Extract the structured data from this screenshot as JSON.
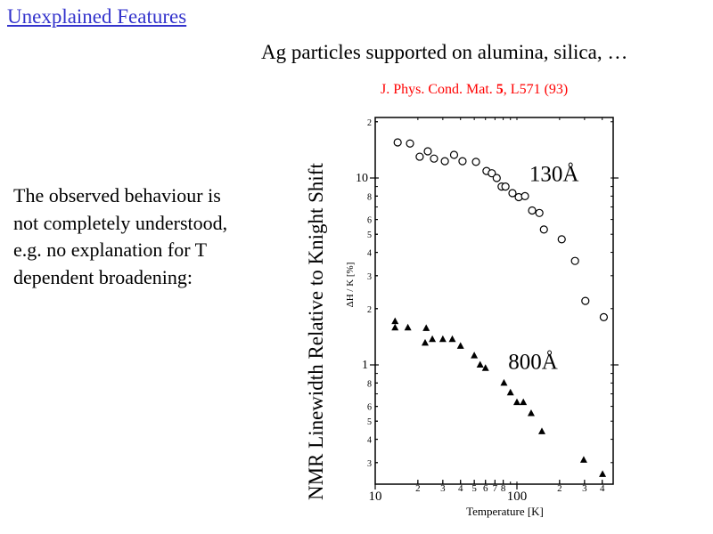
{
  "slide": {
    "title": "Unexplained Features",
    "subtitle": "Ag particles supported on alumina, silica, …",
    "reference": {
      "prefix": "J. Phys. Cond. Mat. ",
      "volume": "5",
      "suffix": ", L571 (93)"
    },
    "body_lines": [
      "The observed behaviour is",
      "not completely understood,",
      "e.g. no explanation for T",
      "dependent broadening:"
    ],
    "outer_ylabel": "NMR Linewidth Relative to Knight Shift"
  },
  "colors": {
    "title_link": "#3333cc",
    "reference": "#ff0000",
    "text": "#000000"
  },
  "chart_data": {
    "type": "scatter",
    "title": "",
    "xlabel": "Temperature  [K]",
    "ylabel": "ΔH / K  [%]",
    "xscale": "log",
    "yscale": "log",
    "xlim": [
      9.5,
      470
    ],
    "ylim": [
      0.24,
      21
    ],
    "grid": false,
    "x_ticks": [
      {
        "value": 10,
        "label": "10",
        "major": true
      },
      {
        "value": 20,
        "label": "2"
      },
      {
        "value": 30,
        "label": "3"
      },
      {
        "value": 40,
        "label": "4"
      },
      {
        "value": 50,
        "label": "5"
      },
      {
        "value": 60,
        "label": "6"
      },
      {
        "value": 70,
        "label": "7"
      },
      {
        "value": 80,
        "label": "8"
      },
      {
        "value": 100,
        "label": "100",
        "major": true
      },
      {
        "value": 200,
        "label": "2"
      },
      {
        "value": 300,
        "label": "3"
      },
      {
        "value": 400,
        "label": "4"
      }
    ],
    "y_ticks": [
      {
        "value": 20,
        "label": "2"
      },
      {
        "value": 10,
        "label": "10",
        "major": true
      },
      {
        "value": 8,
        "label": "8"
      },
      {
        "value": 6,
        "label": "6"
      },
      {
        "value": 5,
        "label": "5"
      },
      {
        "value": 4,
        "label": "4"
      },
      {
        "value": 3,
        "label": "3"
      },
      {
        "value": 2,
        "label": "2"
      },
      {
        "value": 1,
        "label": "1",
        "major": true
      },
      {
        "value": 0.8,
        "label": "8"
      },
      {
        "value": 0.6,
        "label": "6"
      },
      {
        "value": 0.5,
        "label": "5"
      },
      {
        "value": 0.4,
        "label": "4"
      },
      {
        "value": 0.3,
        "label": "3"
      }
    ],
    "series": [
      {
        "name": "130Å",
        "marker": "open-circle",
        "label_at": {
          "x": 200,
          "y": 9.6
        },
        "x": [
          14.4,
          17.6,
          20.6,
          23.5,
          26,
          31,
          36,
          41.3,
          51.4,
          61,
          66.5,
          72,
          78,
          83,
          93,
          103,
          114,
          128,
          144,
          155,
          207,
          257,
          304,
          410
        ],
        "y": [
          15.5,
          15.3,
          13.0,
          13.9,
          12.7,
          12.3,
          13.3,
          12.3,
          12.2,
          10.9,
          10.6,
          10.0,
          9.0,
          9.0,
          8.3,
          7.9,
          8.0,
          6.7,
          6.5,
          5.3,
          4.7,
          3.6,
          2.2,
          1.8
        ]
      },
      {
        "name": "800Å",
        "marker": "filled-triangle",
        "label_at": {
          "x": 142,
          "y": 0.95
        },
        "x": [
          13.8,
          13.8,
          17,
          22.5,
          22.9,
          25.3,
          30,
          35,
          40,
          50,
          55,
          60,
          81,
          90,
          100,
          111,
          126,
          150,
          296,
          402
        ],
        "y": [
          1.71,
          1.58,
          1.58,
          1.31,
          1.57,
          1.37,
          1.37,
          1.37,
          1.26,
          1.12,
          1.0,
          0.96,
          0.8,
          0.71,
          0.63,
          0.63,
          0.55,
          0.44,
          0.31,
          0.26
        ]
      }
    ]
  }
}
